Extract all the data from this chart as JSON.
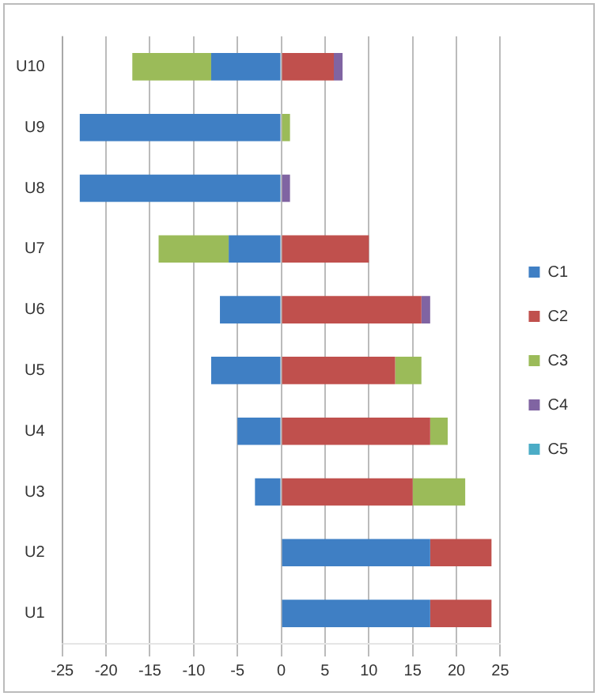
{
  "chart_data": {
    "type": "bar",
    "orientation": "horizontal",
    "stacked": true,
    "categories": [
      "U10",
      "U9",
      "U8",
      "U7",
      "U6",
      "U5",
      "U4",
      "U3",
      "U2",
      "U1"
    ],
    "series": [
      {
        "name": "C1",
        "color": "#3f7fc4",
        "values": [
          -8,
          -23,
          -23,
          -6,
          -7,
          -8,
          -5,
          -3,
          17,
          17
        ]
      },
      {
        "name": "C2",
        "color": "#c0504d",
        "values": [
          6,
          0,
          0,
          10,
          16,
          13,
          17,
          15,
          7,
          7
        ]
      },
      {
        "name": "C3",
        "color": "#9bbb59",
        "values": [
          -9,
          1,
          0,
          -8,
          0,
          3,
          2,
          6,
          0,
          0
        ]
      },
      {
        "name": "C4",
        "color": "#8064a2",
        "values": [
          1,
          0,
          1,
          0,
          1,
          0,
          0,
          0,
          0,
          0
        ]
      },
      {
        "name": "C5",
        "color": "#4bacc6",
        "values": [
          0,
          0,
          0,
          0,
          0,
          0,
          0,
          0,
          0,
          0
        ]
      }
    ],
    "xlim": [
      -25,
      25
    ],
    "xticks": [
      -25,
      -20,
      -15,
      -10,
      -5,
      0,
      5,
      10,
      15,
      20,
      25
    ],
    "grid": "x",
    "legend": "right"
  }
}
